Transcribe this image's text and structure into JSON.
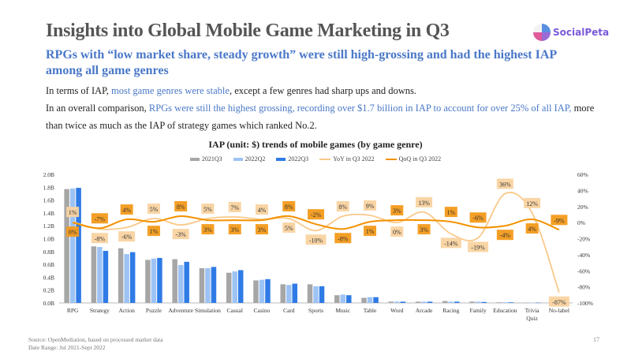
{
  "header": {
    "title": "Insights into Global Mobile Game Marketing in Q3",
    "logo_text": "SocialPeta",
    "subtitle": "RPGs with “low market share, steady growth” were still high-grossing and had the highest IAP among all game genres"
  },
  "body": {
    "p1_a": "In terms of IAP, ",
    "p1_hl": "most game genres were stable",
    "p1_b": ", except a few genres had sharp ups and downs.",
    "p2_a": "In an overall comparison, ",
    "p2_hl": "RPGs were still the highest grossing, recording over $1.7 billion in IAP to account for over 25% of all IAP,",
    "p2_b": " more than twice as much as the IAP of strategy games which ranked No.2."
  },
  "chart_data": {
    "type": "bar",
    "title": "IAP (unit: $) trends of mobile games (by game genre)",
    "categories": [
      "RPG",
      "Strategy",
      "Action",
      "Puzzle",
      "Adventure",
      "Simulation",
      "Casual",
      "Casino",
      "Card",
      "Sports",
      "Music",
      "Table",
      "Word",
      "Arcade",
      "Racing",
      "Family",
      "Education",
      "Trivia Quiz",
      "No-label"
    ],
    "left_axis": {
      "unit": "B",
      "ylim": [
        0,
        2.0
      ],
      "ticks": [
        "0.0B",
        "0.2B",
        "0.4B",
        "0.6B",
        "0.8B",
        "1.0B",
        "1.2B",
        "1.4B",
        "1.6B",
        "1.8B",
        "2.0B"
      ]
    },
    "right_axis": {
      "unit": "%",
      "ylim": [
        -100,
        60
      ],
      "ticks": [
        "-100%",
        "-80%",
        "-60%",
        "-40%",
        "-20%",
        "0%",
        "20%",
        "40%",
        "60%"
      ]
    },
    "series": [
      {
        "name": "2021Q3",
        "kind": "bar",
        "color": "#a6a6a6",
        "values": [
          1.77,
          0.88,
          0.85,
          0.67,
          0.68,
          0.54,
          0.47,
          0.35,
          0.29,
          0.29,
          0.12,
          0.08,
          0.02,
          0.02,
          0.03,
          0.02,
          0.01,
          0.005,
          0.003
        ]
      },
      {
        "name": "2022Q2",
        "kind": "bar",
        "color": "#9dc3f5",
        "values": [
          1.78,
          0.87,
          0.76,
          0.69,
          0.59,
          0.54,
          0.49,
          0.36,
          0.28,
          0.26,
          0.13,
          0.09,
          0.02,
          0.02,
          0.02,
          0.02,
          0.01,
          0.005,
          0.003
        ]
      },
      {
        "name": "2022Q3",
        "kind": "bar",
        "color": "#2f7be6",
        "values": [
          1.79,
          0.81,
          0.79,
          0.7,
          0.64,
          0.56,
          0.51,
          0.37,
          0.3,
          0.26,
          0.12,
          0.09,
          0.02,
          0.02,
          0.02,
          0.015,
          0.01,
          0.005,
          0.003
        ]
      },
      {
        "name": "YoY in Q3 2022",
        "kind": "line",
        "axis": "right",
        "color": "#f9c98a",
        "values": [
          1,
          -8,
          -6,
          5,
          -3,
          5,
          7,
          4,
          5,
          -10,
          8,
          9,
          0,
          13,
          -14,
          -19,
          36,
          12,
          -87
        ]
      },
      {
        "name": "QoQ in Q3 2022",
        "kind": "line",
        "axis": "right",
        "color": "#f39200",
        "values": [
          0,
          -7,
          4,
          1,
          8,
          3,
          3,
          3,
          8,
          -2,
          -8,
          1,
          3,
          3,
          1,
          -6,
          -4,
          4,
          -9
        ]
      }
    ],
    "legend": "top",
    "grid": false
  },
  "footer": {
    "source": "Source: OpenMediation, based on processed market data",
    "date_range": "Date Range: Jul 2021-Sept 2022",
    "page_number": "17"
  }
}
